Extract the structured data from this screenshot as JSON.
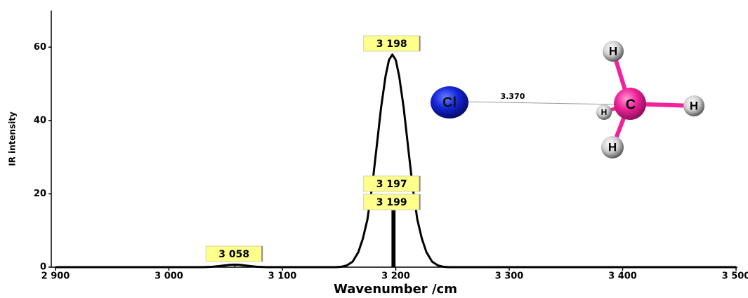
{
  "chart_data": {
    "type": "line",
    "x_label": "Wavenumber /cm",
    "y_label": "IR intensity",
    "xlim": [
      2900,
      3500
    ],
    "ylim": [
      0,
      70
    ],
    "xticks": [
      {
        "value": 2900,
        "label": "2 900"
      },
      {
        "value": 3000,
        "label": "3 000"
      },
      {
        "value": 3100,
        "label": "3 100"
      },
      {
        "value": 3200,
        "label": "3 200"
      },
      {
        "value": 3300,
        "label": "3 300"
      },
      {
        "value": 3400,
        "label": "3 400"
      },
      {
        "value": 3500,
        "label": "3 500"
      }
    ],
    "yticks": [
      0,
      20,
      40,
      60
    ],
    "grid": false,
    "x": [
      2900,
      3030,
      3038,
      3044,
      3050,
      3054,
      3058,
      3062,
      3066,
      3072,
      3078,
      3086,
      3147,
      3152,
      3157,
      3162,
      3167,
      3171,
      3175,
      3179,
      3183,
      3187,
      3191,
      3194,
      3197,
      3200,
      3203,
      3207,
      3211,
      3215,
      3219,
      3223,
      3227,
      3232,
      3237,
      3242,
      3247,
      3500
    ],
    "series": [
      {
        "color": "#000000",
        "values": [
          0,
          0,
          0.1,
          0.3,
          0.5,
          0.65,
          0.7,
          0.65,
          0.5,
          0.3,
          0.1,
          0,
          0,
          0.1,
          0.5,
          1.5,
          4.1,
          7.8,
          13.0,
          21.6,
          32.4,
          43.4,
          52.1,
          56.5,
          58,
          56.5,
          52.1,
          43.4,
          32.4,
          21.6,
          13.0,
          7.8,
          4.1,
          1.5,
          0.5,
          0.1,
          0,
          0
        ]
      }
    ],
    "peaks": {
      "x": [
        3058,
        3197,
        3198,
        3199
      ],
      "values": [
        0.3,
        15.5,
        15.5,
        15.5
      ],
      "labels": [
        "3 058",
        "3 197",
        "3 198",
        "3 199"
      ],
      "color": "#000000",
      "label_color": "#ffff8c"
    }
  },
  "molecule": {
    "atoms": [
      "Cl",
      "C",
      "H",
      "H",
      "H",
      "H"
    ],
    "distance_label": "3.370"
  }
}
